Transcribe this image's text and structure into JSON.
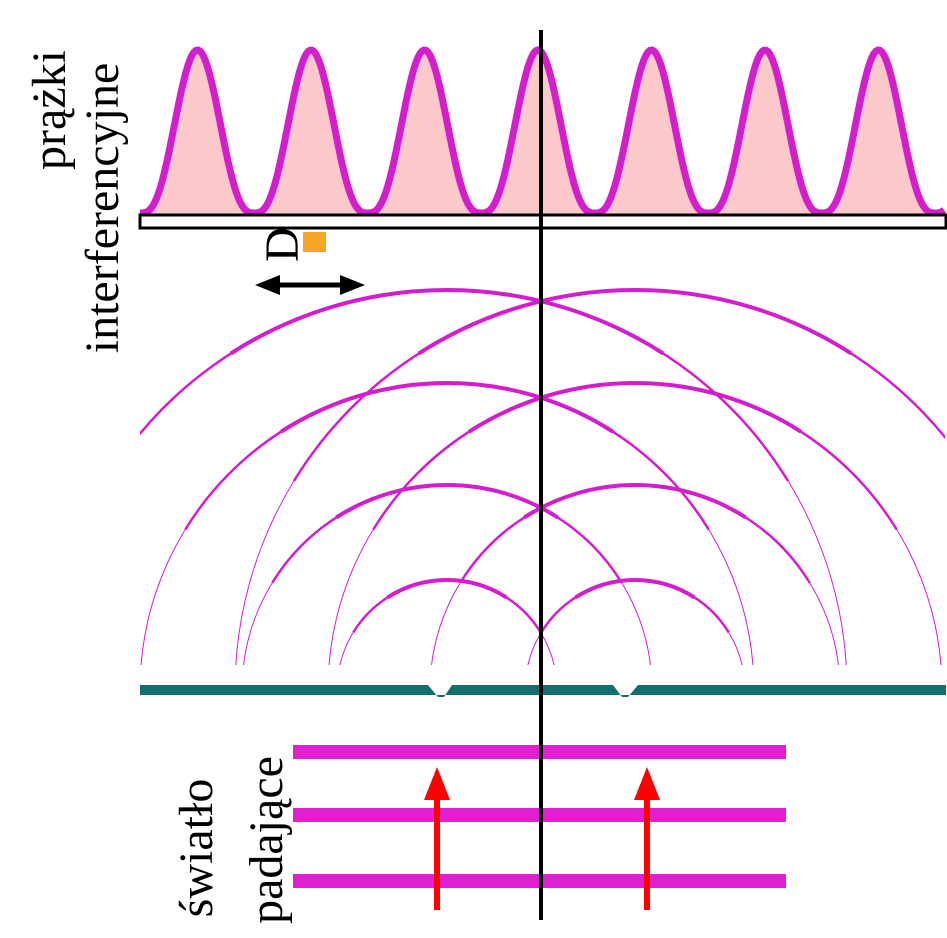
{
  "fringe_label": {
    "line1": "prążki",
    "line2": "interferencyjne"
  },
  "distance_label": "D",
  "light_label": {
    "line1": "światło",
    "line2": "padające"
  }
}
